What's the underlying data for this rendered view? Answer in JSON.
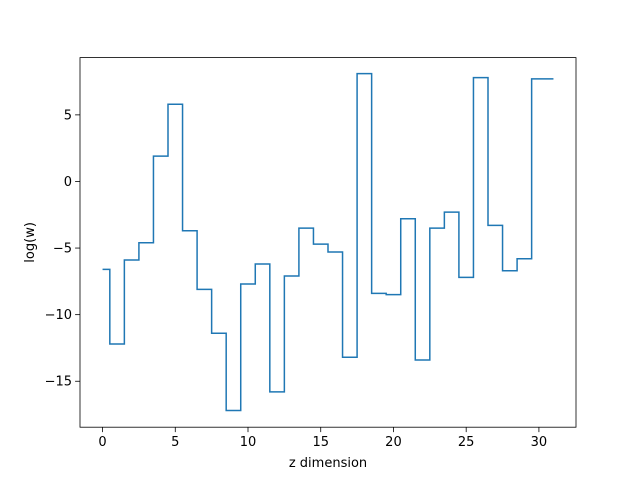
{
  "chart_data": {
    "type": "line",
    "drawstyle": "steps-mid",
    "title": "",
    "xlabel": "z dimension",
    "ylabel": "log(w)",
    "xlim": [
      -1.55,
      32.55
    ],
    "ylim": [
      -18.45,
      9.3
    ],
    "xticks": [
      0,
      5,
      10,
      15,
      20,
      25,
      30
    ],
    "xtick_labels": [
      "0",
      "5",
      "10",
      "15",
      "20",
      "25",
      "30"
    ],
    "yticks": [
      -15,
      -10,
      -5,
      0,
      5
    ],
    "ytick_labels": [
      "−15",
      "−10",
      "−5",
      "0",
      "5"
    ],
    "grid": false,
    "legend": "none",
    "line_color": "#1f77b4",
    "series": [
      {
        "x": [
          0,
          1,
          2,
          3,
          4,
          5,
          6,
          7,
          8,
          9,
          10,
          11,
          12,
          13,
          14,
          15,
          16,
          17,
          18,
          19,
          20,
          21,
          22,
          23,
          24,
          25,
          26,
          27,
          28,
          29,
          30,
          31
        ],
        "y": [
          -6.6,
          -12.2,
          -5.9,
          -4.6,
          1.9,
          5.8,
          -3.7,
          -8.1,
          -11.4,
          -17.2,
          -7.7,
          -6.2,
          -15.8,
          -7.1,
          -3.5,
          -4.7,
          -5.3,
          -13.2,
          8.1,
          -8.4,
          -8.5,
          -2.8,
          -13.4,
          -3.5,
          -2.3,
          -7.2,
          7.8,
          -3.3,
          -6.7,
          -5.8,
          7.7,
          7.7
        ]
      }
    ]
  }
}
